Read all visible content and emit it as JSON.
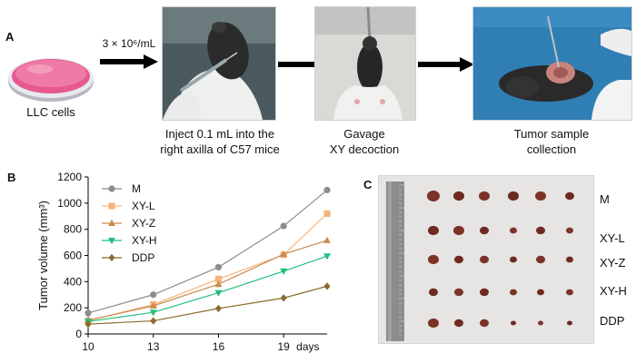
{
  "panel_a": {
    "letter": "A",
    "step1_caption": "LLC cells",
    "dose_label": "3 × 10⁶/mL",
    "step2_caption_line1": "Inject 0.1 mL into the",
    "step2_caption_line2": "right axilla of C57 mice",
    "step3_caption_line1": "Gavage",
    "step3_caption_line2": "XY decoction",
    "step4_caption_line1": "Tumor sample",
    "step4_caption_line2": "collection"
  },
  "panel_b": {
    "letter": "B"
  },
  "panel_c": {
    "letter": "C",
    "group_labels": [
      "M",
      "XY-L",
      "XY-Z",
      "XY-H",
      "DDP"
    ]
  },
  "chart_data": {
    "type": "line",
    "ylabel": "Tumor volume (mm³)",
    "x_unit_label": "days",
    "x": [
      10,
      11.5,
      13,
      16,
      19,
      21
    ],
    "xticks": [
      10,
      13,
      16,
      19
    ],
    "ylim": [
      0,
      1200
    ],
    "yticks": [
      0,
      200,
      400,
      600,
      800,
      1000,
      1200
    ],
    "xlim": [
      10,
      21
    ],
    "legend_position": "top-left",
    "grid": false,
    "series": [
      {
        "name": "M",
        "color": "#8c8c8c",
        "marker": "circle",
        "values": [
          160,
          null,
          300,
          510,
          825,
          1100
        ]
      },
      {
        "name": "XY-L",
        "color": "#f7b47a",
        "marker": "square",
        "values": [
          100,
          null,
          225,
          420,
          605,
          920
        ]
      },
      {
        "name": "XY-Z",
        "color": "#c98b4f",
        "marker": "triangle-up",
        "values": [
          105,
          null,
          215,
          380,
          610,
          715
        ]
      },
      {
        "name": "XY-H",
        "color": "#22c07a",
        "marker": "triangle-down",
        "values": [
          95,
          null,
          165,
          315,
          480,
          595
        ]
      },
      {
        "name": "DDP",
        "color": "#8b6b2f",
        "marker": "diamond",
        "values": [
          75,
          null,
          100,
          195,
          275,
          365
        ]
      }
    ]
  }
}
